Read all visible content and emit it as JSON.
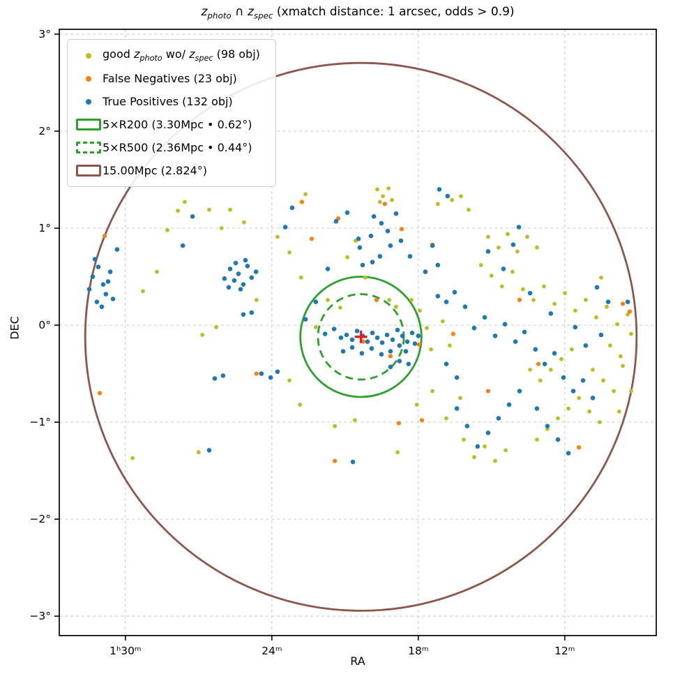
{
  "chart_data": {
    "type": "scatter",
    "title": "$z_{photo}$ ∩ $z_{spec}$ (xmatch distance: 1 arcsec, odds > 0.9)",
    "xlabel": "RA",
    "ylabel": "DEC",
    "x_unit": "RA minutes (hour 1)",
    "xlim": [
      92.71,
      68.25
    ],
    "ylim": [
      -3.2,
      3.05
    ],
    "x_inverted": true,
    "grid": true,
    "colors": {
      "grid": "#c9c9c9",
      "axes": "#000000"
    },
    "xticks": [
      {
        "v": 90,
        "label": "1ʰ30ᵐ"
      },
      {
        "v": 84,
        "label": "24ᵐ"
      },
      {
        "v": 78,
        "label": "18ᵐ"
      },
      {
        "v": 72,
        "label": "12ᵐ"
      }
    ],
    "yticks": [
      {
        "v": 3,
        "label": "3°"
      },
      {
        "v": 2,
        "label": "2°"
      },
      {
        "v": 1,
        "label": "1°"
      },
      {
        "v": 0,
        "label": "0°"
      },
      {
        "v": -1,
        "label": "−1°"
      },
      {
        "v": -2,
        "label": "−2°"
      },
      {
        "v": -3,
        "label": "−3°"
      }
    ],
    "center": {
      "ra": 80.35,
      "dec": -0.12,
      "marker": "plus",
      "color": "#d62728"
    },
    "circles": [
      {
        "name": "5xR200",
        "radius_deg": 0.62,
        "style": "solid",
        "color": "#2ca02c"
      },
      {
        "name": "5xR500",
        "radius_deg": 0.44,
        "style": "dashed",
        "color": "#2ca02c"
      },
      {
        "name": "15Mpc",
        "radius_deg": 2.824,
        "style": "solid",
        "color": "#8c564b"
      }
    ],
    "series": [
      {
        "name": "good zphoto wo/ zspec",
        "count": 98,
        "color": "#bcbd22",
        "size": 2.9,
        "points": [
          [
            77.2,
            1.25
          ],
          [
            76.62,
            1.29
          ],
          [
            76.25,
            1.33
          ],
          [
            75.94,
            1.19
          ],
          [
            75.14,
            0.91
          ],
          [
            74.71,
            0.8
          ],
          [
            74.34,
            0.94
          ],
          [
            73.94,
            0.76
          ],
          [
            73.54,
            0.91
          ],
          [
            73.14,
            0.8
          ],
          [
            75.43,
            0.62
          ],
          [
            75.0,
            0.51
          ],
          [
            74.57,
            0.4
          ],
          [
            74.14,
            0.55
          ],
          [
            73.71,
            0.37
          ],
          [
            73.28,
            0.26
          ],
          [
            72.85,
            0.4
          ],
          [
            72.42,
            0.22
          ],
          [
            71.99,
            0.33
          ],
          [
            71.57,
            0.15
          ],
          [
            71.14,
            0.26
          ],
          [
            70.71,
            0.08
          ],
          [
            70.28,
            0.19
          ],
          [
            69.85,
            0.01
          ],
          [
            69.42,
            0.11
          ],
          [
            70.14,
            -0.21
          ],
          [
            69.71,
            -0.32
          ],
          [
            71.71,
            -0.25
          ],
          [
            72.14,
            -0.35
          ],
          [
            72.57,
            -0.46
          ],
          [
            73.0,
            -0.57
          ],
          [
            73.42,
            -0.46
          ],
          [
            70.85,
            -0.46
          ],
          [
            70.42,
            -0.57
          ],
          [
            69.99,
            -0.68
          ],
          [
            70.99,
            -0.89
          ],
          [
            70.57,
            -1.0
          ],
          [
            71.42,
            -0.75
          ],
          [
            71.85,
            -0.86
          ],
          [
            72.28,
            -0.96
          ],
          [
            72.71,
            -1.07
          ],
          [
            73.14,
            -1.18
          ],
          [
            74.42,
            -1.29
          ],
          [
            74.85,
            -1.4
          ],
          [
            75.28,
            -1.25
          ],
          [
            75.71,
            -1.36
          ],
          [
            76.14,
            -1.18
          ],
          [
            69.62,
            -0.42
          ],
          [
            69.28,
            -0.09
          ],
          [
            70.51,
            0.49
          ],
          [
            79.68,
            1.4
          ],
          [
            79.45,
            1.33
          ],
          [
            79.22,
            1.41
          ],
          [
            79.57,
            1.27
          ],
          [
            79.08,
            1.29
          ],
          [
            82.62,
            1.35
          ],
          [
            87.57,
            1.27
          ],
          [
            86.06,
            1.0
          ],
          [
            86.57,
            1.19
          ],
          [
            80.57,
            0.87
          ],
          [
            80.91,
            0.7
          ],
          [
            80.17,
            0.49
          ],
          [
            81.71,
            0.26
          ],
          [
            82.2,
            -0.02
          ],
          [
            78.91,
            0.19
          ],
          [
            78.28,
            0.26
          ],
          [
            80.6,
            -0.98
          ],
          [
            78.85,
            -1.31
          ],
          [
            81.42,
            -1.04
          ],
          [
            82.85,
            -0.82
          ],
          [
            83.28,
            -0.57
          ],
          [
            77.65,
            -0.03
          ],
          [
            77.48,
            -0.25
          ],
          [
            77.0,
            0.04
          ],
          [
            76.71,
            -0.21
          ],
          [
            77.94,
            0.15
          ],
          [
            79.19,
            0.26
          ],
          [
            81.2,
            0.18
          ],
          [
            89.71,
            -1.37
          ],
          [
            87.0,
            -1.31
          ],
          [
            88.71,
            0.55
          ],
          [
            89.28,
            0.35
          ],
          [
            88.28,
            0.98
          ],
          [
            87.85,
            1.18
          ],
          [
            85.71,
            1.19
          ],
          [
            85.14,
            1.06
          ],
          [
            83.28,
            0.75
          ],
          [
            83.77,
            0.91
          ],
          [
            82.8,
            0.49
          ],
          [
            84.63,
            0.26
          ],
          [
            86.85,
            -0.1
          ],
          [
            86.28,
            -0.02
          ],
          [
            77.42,
            -0.68
          ],
          [
            78.06,
            -0.82
          ],
          [
            76.85,
            -0.96
          ],
          [
            76.28,
            -0.75
          ],
          [
            69.28,
            -0.68
          ],
          [
            69.77,
            -0.89
          ]
        ]
      },
      {
        "name": "False Negatives",
        "count": 23,
        "color": "#ff7f0e",
        "size": 3.1,
        "points": [
          [
            90.85,
            0.92
          ],
          [
            91.05,
            -0.7
          ],
          [
            82.37,
            0.89
          ],
          [
            81.28,
            1.1
          ],
          [
            79.37,
            1.25
          ],
          [
            78.68,
            0.99
          ],
          [
            80.25,
            -0.17
          ],
          [
            77.97,
            -0.2
          ],
          [
            77.85,
            -0.98
          ],
          [
            78.8,
            -1.01
          ],
          [
            76.57,
            -0.09
          ],
          [
            73.08,
            -0.4
          ],
          [
            69.62,
            0.22
          ],
          [
            69.34,
            0.14
          ],
          [
            71.42,
            -1.26
          ],
          [
            79.14,
            -0.32
          ],
          [
            82.77,
            1.27
          ],
          [
            75.14,
            -0.68
          ],
          [
            73.85,
            0.26
          ],
          [
            84.63,
            -0.5
          ],
          [
            81.42,
            -1.4
          ],
          [
            77.42,
            0.83
          ],
          [
            79.71,
            0.26
          ]
        ]
      },
      {
        "name": "True Positives",
        "count": 132,
        "color": "#1f77b4",
        "size": 3.3,
        "points": [
          [
            91.34,
            0.5
          ],
          [
            91.11,
            0.6
          ],
          [
            90.91,
            0.42
          ],
          [
            90.8,
            0.32
          ],
          [
            91.17,
            0.24
          ],
          [
            90.62,
            0.55
          ],
          [
            91.48,
            0.37
          ],
          [
            90.97,
            0.19
          ],
          [
            90.51,
            0.27
          ],
          [
            91.25,
            0.68
          ],
          [
            90.71,
            0.45
          ],
          [
            90.34,
            0.78
          ],
          [
            85.94,
            0.48
          ],
          [
            85.71,
            0.58
          ],
          [
            85.54,
            0.46
          ],
          [
            85.37,
            0.53
          ],
          [
            85.17,
            0.42
          ],
          [
            85.0,
            0.61
          ],
          [
            84.83,
            0.49
          ],
          [
            85.28,
            0.37
          ],
          [
            85.77,
            0.39
          ],
          [
            84.65,
            0.55
          ],
          [
            85.08,
            0.67
          ],
          [
            85.48,
            0.64
          ],
          [
            85.17,
            0.11
          ],
          [
            84.83,
            0.13
          ],
          [
            81.17,
            -0.13
          ],
          [
            80.94,
            -0.1
          ],
          [
            80.71,
            -0.15
          ],
          [
            80.51,
            -0.06
          ],
          [
            80.28,
            -0.11
          ],
          [
            80.08,
            -0.17
          ],
          [
            79.88,
            -0.08
          ],
          [
            79.68,
            -0.13
          ],
          [
            79.48,
            -0.18
          ],
          [
            79.28,
            -0.1
          ],
          [
            79.05,
            -0.15
          ],
          [
            78.85,
            -0.05
          ],
          [
            78.65,
            -0.11
          ],
          [
            78.45,
            -0.17
          ],
          [
            78.25,
            -0.08
          ],
          [
            78.77,
            -0.21
          ],
          [
            79.14,
            -0.27
          ],
          [
            79.51,
            -0.3
          ],
          [
            79.91,
            -0.24
          ],
          [
            80.31,
            -0.29
          ],
          [
            80.71,
            -0.23
          ],
          [
            81.08,
            -0.27
          ],
          [
            78.51,
            -0.27
          ],
          [
            78.14,
            -0.19
          ],
          [
            78.0,
            -0.11
          ],
          [
            81.45,
            -0.04
          ],
          [
            81.82,
            -0.09
          ],
          [
            78.77,
            -0.37
          ],
          [
            78.4,
            -0.4
          ],
          [
            79.14,
            -0.43
          ],
          [
            83.17,
            1.21
          ],
          [
            83.45,
            1.01
          ],
          [
            81.37,
            1.07
          ],
          [
            80.91,
            1.16
          ],
          [
            80.45,
            0.89
          ],
          [
            79.82,
            1.12
          ],
          [
            79.51,
            1.05
          ],
          [
            80.28,
            0.62
          ],
          [
            79.88,
            0.65
          ],
          [
            80.4,
            0.8
          ],
          [
            81.71,
            0.58
          ],
          [
            79.14,
            0.82
          ],
          [
            78.71,
            0.87
          ],
          [
            78.34,
            0.71
          ],
          [
            77.14,
            1.4
          ],
          [
            76.8,
            1.33
          ],
          [
            79.57,
            0.71
          ],
          [
            79.94,
            0.92
          ],
          [
            79.25,
            0.97
          ],
          [
            78.91,
            1.15
          ],
          [
            86.34,
            -0.55
          ],
          [
            86.0,
            -0.52
          ],
          [
            84.43,
            -0.5
          ],
          [
            84.05,
            -0.54
          ],
          [
            83.77,
            -0.48
          ],
          [
            86.57,
            -1.29
          ],
          [
            87.25,
            1.12
          ],
          [
            87.65,
            0.82
          ],
          [
            77.2,
            0.3
          ],
          [
            76.85,
            0.24
          ],
          [
            76.51,
            0.34
          ],
          [
            76.08,
            0.19
          ],
          [
            75.71,
            -0.03
          ],
          [
            75.28,
            0.08
          ],
          [
            74.85,
            -0.11
          ],
          [
            74.45,
            0.01
          ],
          [
            74.02,
            -0.17
          ],
          [
            73.65,
            -0.07
          ],
          [
            73.2,
            -0.25
          ],
          [
            72.82,
            -0.4
          ],
          [
            72.42,
            -0.29
          ],
          [
            72.05,
            -0.54
          ],
          [
            71.65,
            -0.68
          ],
          [
            71.25,
            -0.57
          ],
          [
            70.85,
            -0.75
          ],
          [
            73.85,
            -0.68
          ],
          [
            74.28,
            -0.82
          ],
          [
            74.71,
            -0.96
          ],
          [
            75.14,
            -1.11
          ],
          [
            75.57,
            -1.25
          ],
          [
            76.0,
            -1.04
          ],
          [
            76.42,
            -0.86
          ],
          [
            73.14,
            -0.86
          ],
          [
            72.71,
            -1.04
          ],
          [
            72.28,
            -1.18
          ],
          [
            71.85,
            -1.32
          ],
          [
            76.85,
            -0.4
          ],
          [
            76.42,
            -0.54
          ],
          [
            70.68,
            0.39
          ],
          [
            70.22,
            0.24
          ],
          [
            69.42,
            0.24
          ],
          [
            70.51,
            -0.1
          ],
          [
            73.88,
            1.01
          ],
          [
            74.11,
            0.83
          ],
          [
            80.68,
            -1.41
          ],
          [
            77.42,
            0.82
          ],
          [
            77.71,
            0.55
          ],
          [
            77.2,
            0.62
          ],
          [
            75.14,
            0.76
          ],
          [
            74.51,
            0.58
          ],
          [
            73.42,
            0.33
          ],
          [
            72.57,
            0.12
          ],
          [
            71.57,
            -0.02
          ],
          [
            71.14,
            -0.21
          ],
          [
            82.2,
            0.24
          ],
          [
            82.62,
            0.06
          ]
        ]
      }
    ],
    "legend": {
      "position": "upper-left",
      "entries": [
        {
          "label": "good $z_{photo}$ wo/ $z_{spec}$ (98 obj)",
          "marker": "dot",
          "color": "#bcbd22"
        },
        {
          "label": "False Negatives (23 obj)",
          "marker": "dot",
          "color": "#ff7f0e"
        },
        {
          "label": "True Positives (132 obj)",
          "marker": "dot",
          "color": "#1f77b4"
        },
        {
          "label": "5×R200 (3.30Mpc • 0.62°)",
          "marker": "rect-solid",
          "color": "#2ca02c"
        },
        {
          "label": "5×R500 (2.36Mpc • 0.44°)",
          "marker": "rect-dashed",
          "color": "#2ca02c"
        },
        {
          "label": "15.00Mpc (2.824°)",
          "marker": "rect-solid",
          "color": "#8c564b"
        }
      ]
    }
  }
}
